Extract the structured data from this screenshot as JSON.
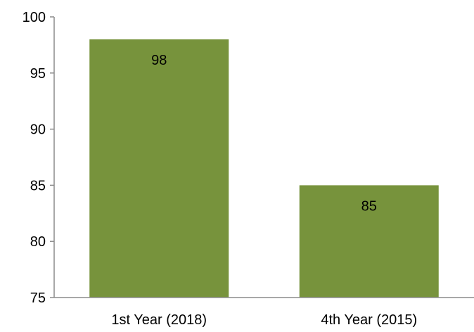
{
  "chart_data": {
    "type": "bar",
    "title": "",
    "xlabel": "",
    "ylabel": "",
    "categories": [
      "1st Year (2018)",
      "4th Year (2015)"
    ],
    "values": [
      98,
      85
    ],
    "data_labels": [
      "98",
      "85"
    ],
    "ylim": [
      75,
      100
    ],
    "yticks": [
      75,
      80,
      85,
      90,
      95,
      100
    ],
    "ytick_labels": [
      "75",
      "80",
      "85",
      "90",
      "95",
      "100"
    ],
    "grid": false,
    "legend": "none",
    "bar_color": "#77933c"
  }
}
